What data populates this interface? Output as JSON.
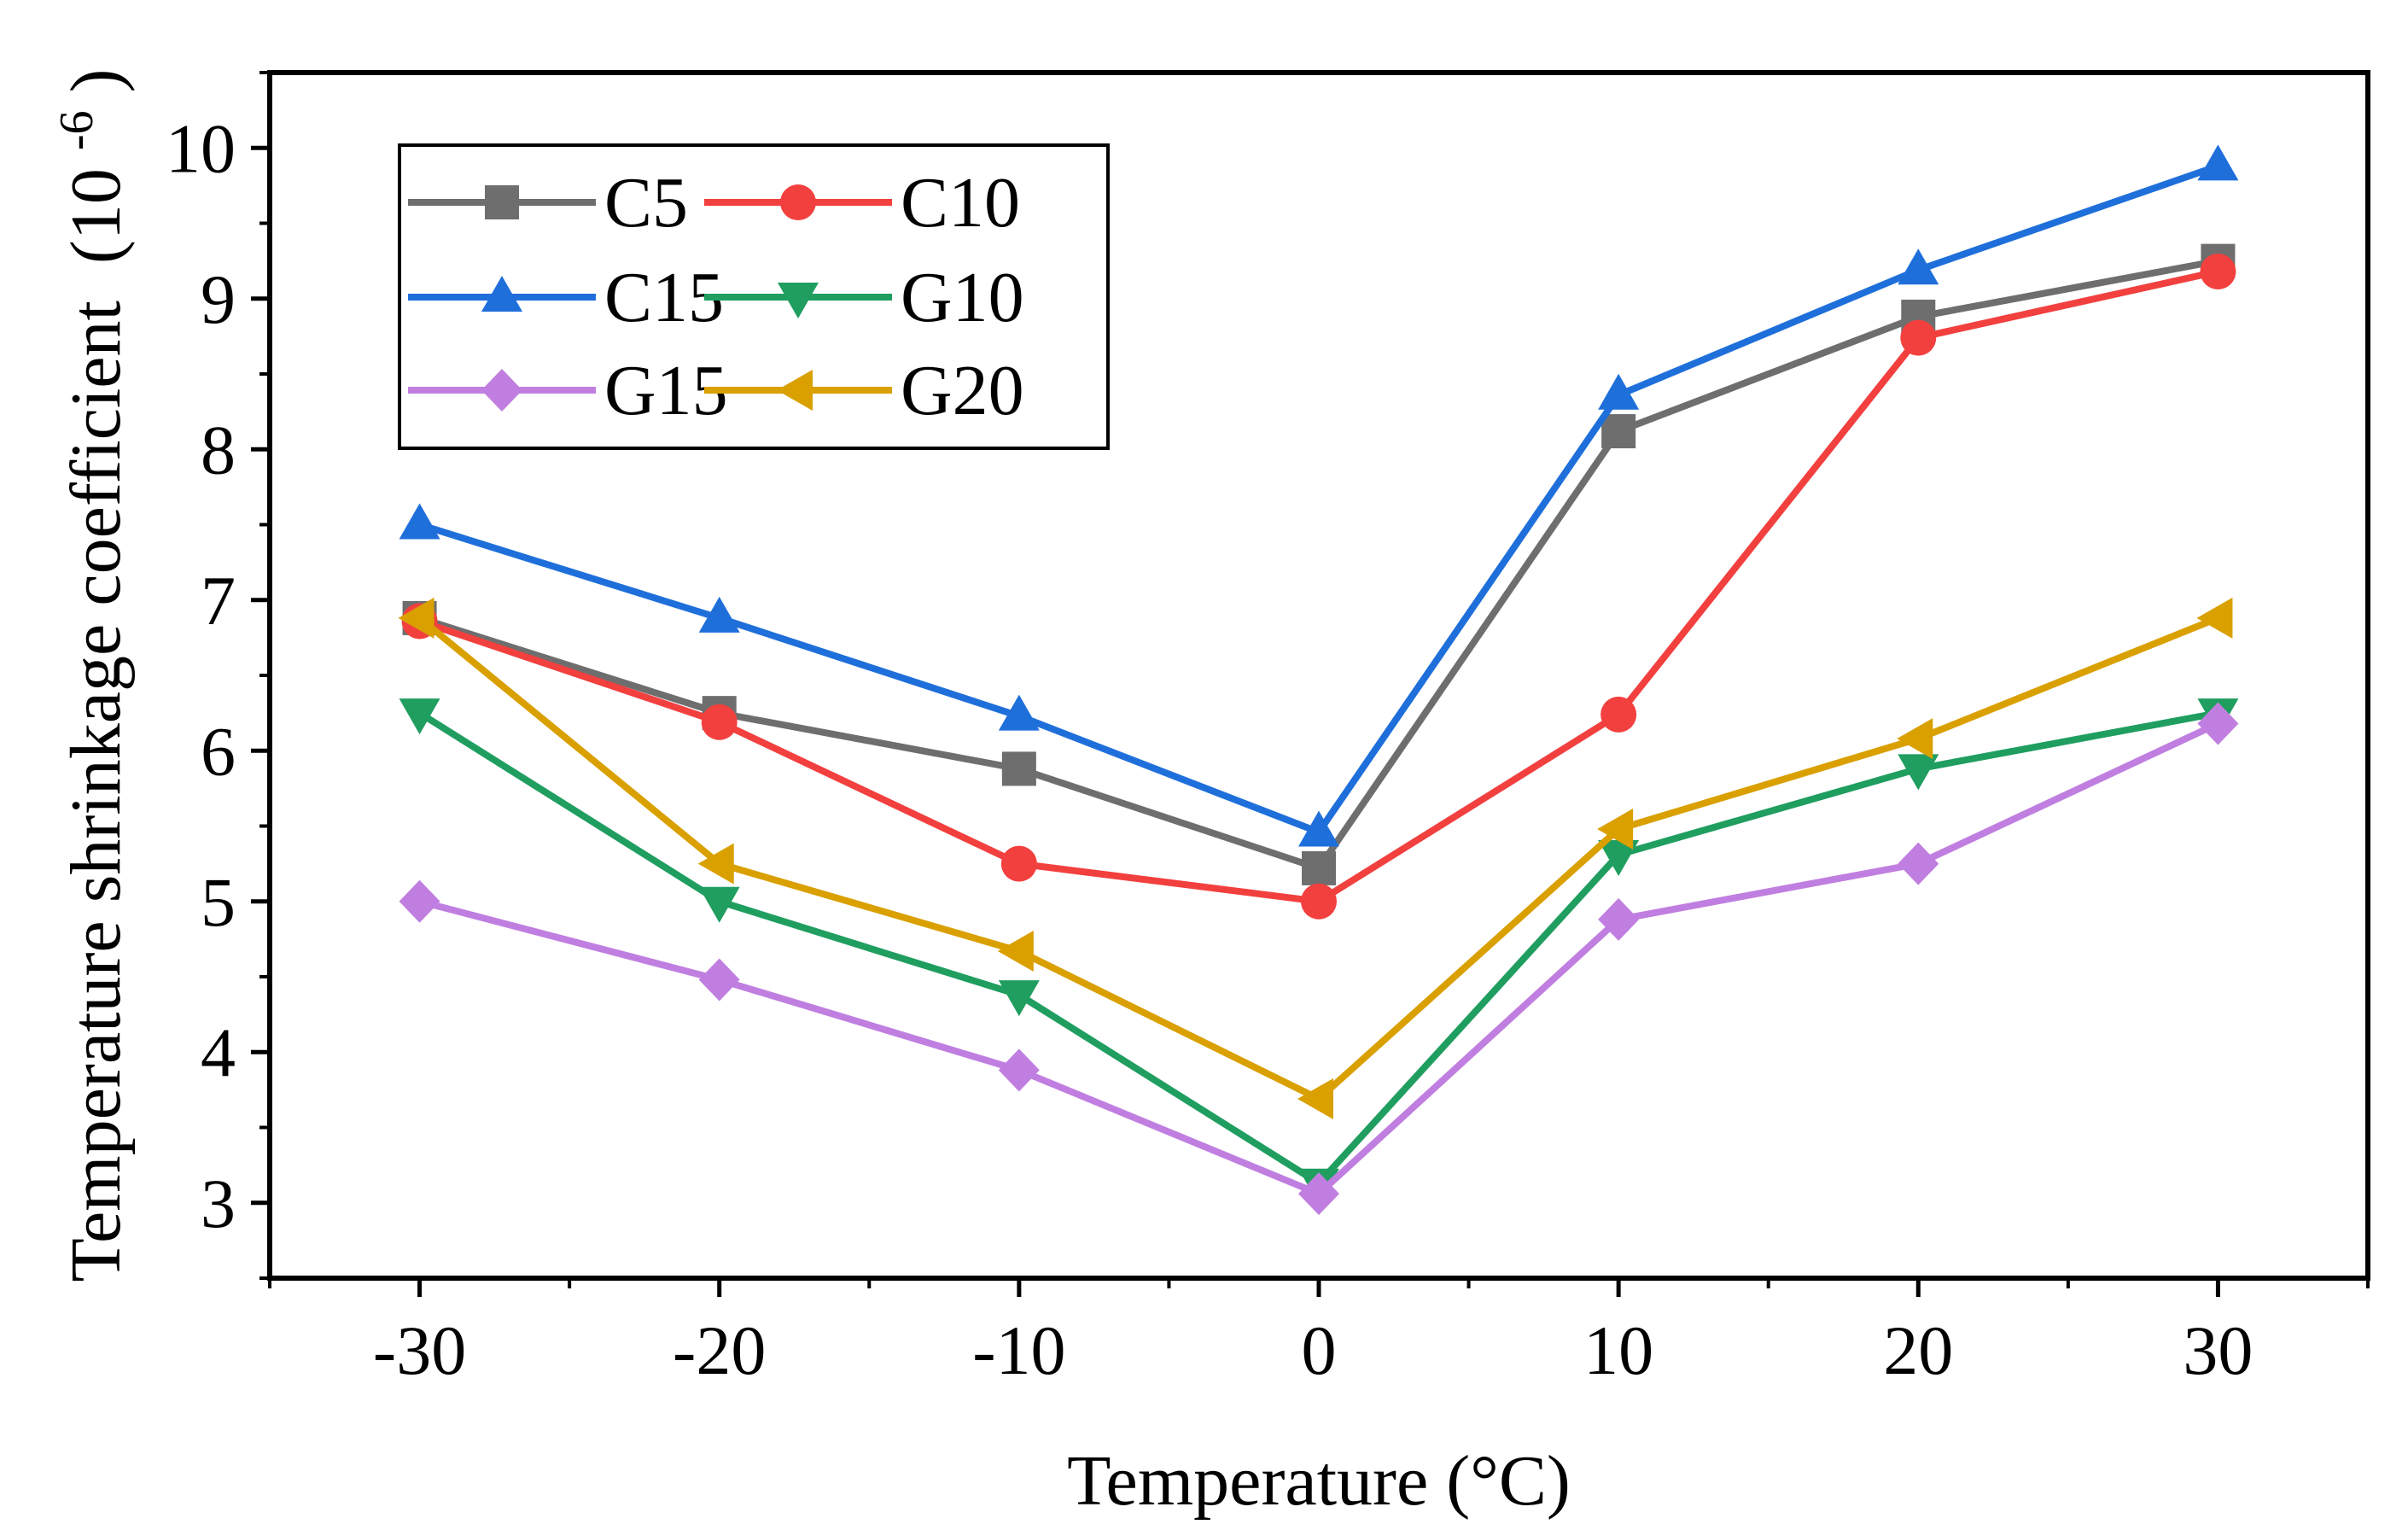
{
  "chart_data": {
    "type": "line",
    "title": "",
    "xlabel": "Temperature (°C)",
    "ylabel": "Temperature shrinkage coefficient",
    "ylabel_unit_base": "(10",
    "ylabel_unit_exp": "-6",
    "ylabel_unit_close": ")",
    "x": [
      -30,
      -20,
      -10,
      0,
      10,
      20,
      30
    ],
    "xlim": [
      -35,
      35
    ],
    "ylim": [
      2.5,
      10.5
    ],
    "x_ticks": [
      "-30",
      "-20",
      "-10",
      "0",
      "10",
      "20",
      "30"
    ],
    "y_ticks": [
      "3",
      "4",
      "5",
      "6",
      "7",
      "8",
      "9",
      "10"
    ],
    "grid": false,
    "legend_position": "top-left",
    "series": [
      {
        "name": "C5",
        "color": "#6e6e6e",
        "marker": "square",
        "values": [
          6.88,
          6.25,
          5.88,
          5.22,
          8.12,
          8.88,
          9.25
        ]
      },
      {
        "name": "C10",
        "color": "#f2403f",
        "marker": "circle",
        "values": [
          6.86,
          6.19,
          5.25,
          5.0,
          6.24,
          8.74,
          9.18
        ]
      },
      {
        "name": "C15",
        "color": "#1f6fdb",
        "marker": "triangle-up",
        "values": [
          7.5,
          6.88,
          6.23,
          5.46,
          8.36,
          9.19,
          9.88
        ]
      },
      {
        "name": "G10",
        "color": "#1f9e60",
        "marker": "triangle-down",
        "values": [
          6.25,
          5.0,
          4.38,
          3.13,
          5.31,
          5.88,
          6.25
        ]
      },
      {
        "name": "G15",
        "color": "#c07fe0",
        "marker": "diamond",
        "values": [
          5.0,
          4.48,
          3.88,
          3.06,
          4.88,
          5.25,
          6.18
        ]
      },
      {
        "name": "G20",
        "color": "#d9a000",
        "marker": "triangle-left",
        "values": [
          6.88,
          5.25,
          4.67,
          3.69,
          5.48,
          6.08,
          6.88
        ]
      }
    ]
  }
}
